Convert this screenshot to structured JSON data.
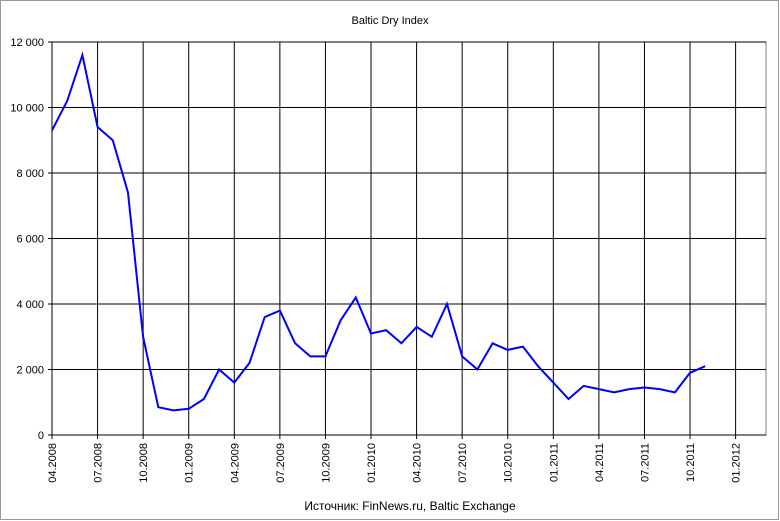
{
  "chart_data": {
    "type": "line",
    "title": "Baltic Dry Index",
    "source": "Источник: FinNews.ru, Baltic Exchange",
    "x": [
      "2008-04",
      "2008-05",
      "2008-06",
      "2008-07",
      "2008-08",
      "2008-09",
      "2008-10",
      "2008-11",
      "2008-12",
      "2009-01",
      "2009-02",
      "2009-03",
      "2009-04",
      "2009-05",
      "2009-06",
      "2009-07",
      "2009-08",
      "2009-09",
      "2009-10",
      "2009-11",
      "2009-12",
      "2010-01",
      "2010-02",
      "2010-03",
      "2010-04",
      "2010-05",
      "2010-06",
      "2010-07",
      "2010-08",
      "2010-09",
      "2010-10",
      "2010-11",
      "2010-12",
      "2011-01",
      "2011-02",
      "2011-03",
      "2011-04",
      "2011-05",
      "2011-06",
      "2011-07",
      "2011-08",
      "2011-09",
      "2011-10",
      "2011-11"
    ],
    "series": [
      {
        "name": "Baltic Dry Index",
        "color": "#0000ff",
        "values": [
          9300,
          10200,
          11600,
          9400,
          9000,
          7400,
          3000,
          850,
          750,
          800,
          1100,
          2000,
          1600,
          2200,
          3600,
          3800,
          2800,
          2400,
          2400,
          3500,
          4200,
          3100,
          3200,
          2800,
          3300,
          3000,
          4000,
          2400,
          2000,
          2800,
          2600,
          2700,
          2100,
          1600,
          1100,
          1500,
          1400,
          1300,
          1400,
          1450,
          1400,
          1300,
          1900,
          2100
        ]
      }
    ],
    "xlim": [
      "2008-04",
      "2012-03"
    ],
    "xticks": [
      {
        "value": "2008-04",
        "label": "04.2008"
      },
      {
        "value": "2008-07",
        "label": "07.2008"
      },
      {
        "value": "2008-10",
        "label": "10.2008"
      },
      {
        "value": "2009-01",
        "label": "01.2009"
      },
      {
        "value": "2009-04",
        "label": "04.2009"
      },
      {
        "value": "2009-07",
        "label": "07.2009"
      },
      {
        "value": "2009-10",
        "label": "10.2009"
      },
      {
        "value": "2010-01",
        "label": "01.2010"
      },
      {
        "value": "2010-04",
        "label": "04.2010"
      },
      {
        "value": "2010-07",
        "label": "07.2010"
      },
      {
        "value": "2010-10",
        "label": "10.2010"
      },
      {
        "value": "2011-01",
        "label": "01.2011"
      },
      {
        "value": "2011-04",
        "label": "04.2011"
      },
      {
        "value": "2011-07",
        "label": "07.2011"
      },
      {
        "value": "2011-10",
        "label": "10.2011"
      },
      {
        "value": "2012-01",
        "label": "01.2012"
      }
    ],
    "ylim": [
      0,
      12000
    ],
    "yticks": [
      0,
      {
        "value": 2000,
        "label": "2 000"
      },
      {
        "value": 4000,
        "label": "4 000"
      },
      {
        "value": 6000,
        "label": "6 000"
      },
      {
        "value": 8000,
        "label": "8 000"
      },
      {
        "value": 10000,
        "label": "10 000"
      },
      {
        "value": 12000,
        "label": "12 000"
      }
    ],
    "grid": true
  }
}
